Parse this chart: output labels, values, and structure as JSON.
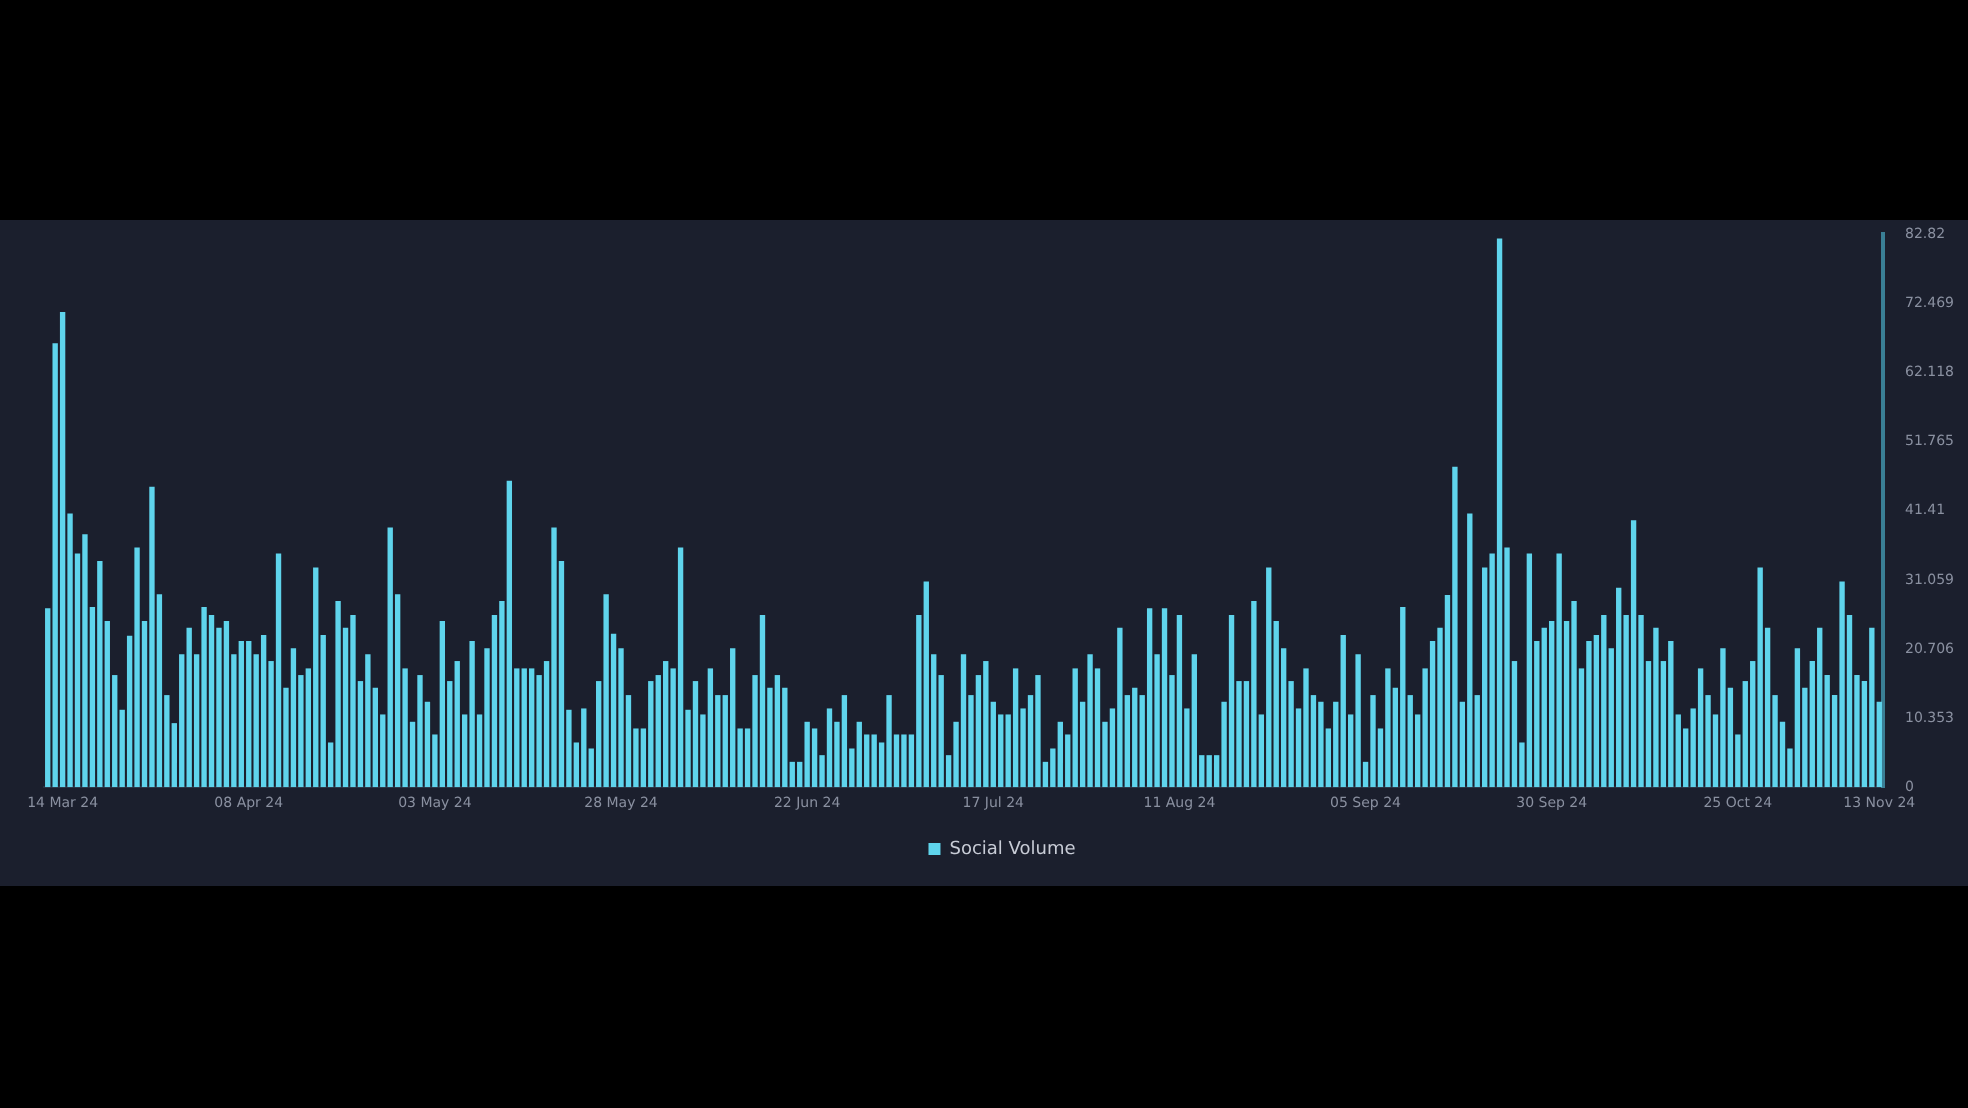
{
  "chart_data": {
    "type": "bar",
    "categories": [
      null,
      null,
      "14 Mar 24",
      null,
      null,
      null,
      null,
      null,
      null,
      null,
      null,
      null,
      null,
      null,
      null,
      null,
      null,
      null,
      null,
      null,
      null,
      null,
      null,
      null,
      null,
      null,
      null,
      "08 Apr 24",
      null,
      null,
      null,
      null,
      null,
      null,
      null,
      null,
      null,
      null,
      null,
      null,
      null,
      null,
      null,
      null,
      null,
      null,
      null,
      null,
      null,
      null,
      null,
      null,
      "03 May 24",
      null,
      null,
      null,
      null,
      null,
      null,
      null,
      null,
      null,
      null,
      null,
      null,
      null,
      null,
      null,
      null,
      null,
      null,
      null,
      null,
      null,
      null,
      null,
      null,
      "28 May 24",
      null,
      null,
      null,
      null,
      null,
      null,
      null,
      null,
      null,
      null,
      null,
      null,
      null,
      null,
      null,
      null,
      null,
      null,
      null,
      null,
      null,
      null,
      null,
      null,
      "22 Jun 24",
      null,
      null,
      null,
      null,
      null,
      null,
      null,
      null,
      null,
      null,
      null,
      null,
      null,
      null,
      null,
      null,
      null,
      null,
      null,
      null,
      null,
      null,
      null,
      null,
      "17 Jul 24",
      null,
      null,
      null,
      null,
      null,
      null,
      null,
      null,
      null,
      null,
      null,
      null,
      null,
      null,
      null,
      null,
      null,
      null,
      null,
      null,
      null,
      null,
      null,
      null,
      "11 Aug 24",
      null,
      null,
      null,
      null,
      null,
      null,
      null,
      null,
      null,
      null,
      null,
      null,
      null,
      null,
      null,
      null,
      null,
      null,
      null,
      null,
      null,
      null,
      null,
      null,
      "05 Sep 24",
      null,
      null,
      null,
      null,
      null,
      null,
      null,
      null,
      null,
      null,
      null,
      null,
      null,
      null,
      null,
      null,
      null,
      null,
      null,
      null,
      null,
      null,
      null,
      null,
      "30 Sep 24",
      null,
      null,
      null,
      null,
      null,
      null,
      null,
      null,
      null,
      null,
      null,
      null,
      null,
      null,
      null,
      null,
      null,
      null,
      null,
      null,
      null,
      null,
      null,
      null,
      "25 Oct 24",
      null,
      null,
      null,
      null,
      null,
      null,
      null,
      null,
      null,
      null,
      null,
      null,
      null,
      null,
      null,
      null,
      null,
      null,
      "13 Nov 24"
    ],
    "series": [
      {
        "name": "Social Volume",
        "color": "#5fd4ec",
        "values": [
          26.8,
          66.5,
          71.2,
          41.0,
          35.0,
          37.9,
          27.0,
          33.9,
          24.9,
          16.8,
          11.6,
          22.7,
          35.9,
          24.9,
          45.0,
          28.9,
          13.8,
          9.6,
          19.9,
          23.9,
          19.9,
          27.0,
          25.8,
          23.9,
          24.9,
          19.9,
          21.9,
          21.9,
          19.9,
          22.8,
          18.9,
          35.0,
          14.9,
          20.8,
          16.8,
          17.8,
          32.9,
          22.8,
          6.7,
          27.9,
          23.9,
          25.8,
          15.9,
          19.9,
          14.9,
          10.9,
          38.9,
          28.9,
          17.8,
          9.8,
          16.8,
          12.8,
          7.9,
          24.9,
          15.9,
          18.9,
          10.9,
          21.9,
          10.9,
          20.8,
          25.8,
          27.9,
          45.9,
          17.8,
          17.8,
          17.8,
          16.8,
          18.9,
          38.9,
          33.9,
          11.6,
          6.7,
          11.8,
          5.8,
          15.9,
          28.9,
          23.0,
          20.8,
          13.8,
          8.8,
          8.8,
          15.9,
          16.8,
          18.9,
          17.8,
          35.9,
          11.6,
          15.9,
          10.9,
          17.8,
          13.8,
          13.8,
          20.8,
          8.8,
          8.8,
          16.8,
          25.8,
          14.9,
          16.8,
          14.9,
          3.8,
          3.8,
          9.8,
          8.8,
          4.8,
          11.8,
          9.8,
          13.8,
          5.8,
          9.8,
          7.9,
          7.9,
          6.7,
          13.8,
          7.9,
          7.9,
          7.9,
          25.8,
          30.8,
          19.9,
          16.8,
          4.8,
          9.8,
          19.9,
          13.8,
          16.8,
          18.9,
          12.8,
          10.9,
          10.9,
          17.8,
          11.8,
          13.8,
          16.8,
          3.8,
          5.8,
          9.8,
          7.9,
          17.8,
          12.8,
          19.9,
          17.8,
          9.8,
          11.8,
          23.9,
          13.8,
          14.9,
          13.8,
          26.8,
          19.9,
          26.8,
          16.8,
          25.8,
          11.8,
          19.9,
          4.8,
          4.8,
          4.8,
          12.8,
          25.8,
          15.9,
          15.9,
          27.9,
          10.9,
          32.9,
          24.9,
          20.8,
          15.9,
          11.8,
          17.8,
          13.8,
          12.8,
          8.8,
          12.8,
          22.8,
          10.9,
          19.9,
          3.8,
          13.8,
          8.8,
          17.8,
          14.9,
          27.0,
          13.8,
          10.9,
          17.8,
          21.9,
          23.9,
          28.8,
          48.0,
          12.8,
          41.0,
          13.8,
          32.9,
          35.0,
          82.2,
          35.9,
          18.9,
          6.7,
          35.0,
          21.9,
          23.9,
          24.9,
          35.0,
          24.9,
          27.9,
          17.8,
          21.9,
          22.8,
          25.8,
          20.8,
          29.9,
          25.8,
          40.0,
          25.8,
          18.9,
          23.9,
          18.9,
          21.9,
          10.9,
          8.8,
          11.8,
          17.8,
          13.8,
          10.9,
          20.8,
          14.9,
          7.9,
          15.9,
          18.9,
          32.9,
          23.9,
          13.8,
          9.8,
          5.8,
          20.8,
          14.9,
          18.9,
          23.9,
          16.8,
          13.8,
          30.8,
          25.8,
          16.8,
          15.9,
          23.9,
          12.8
        ]
      }
    ],
    "ylim": [
      0,
      82.82
    ],
    "yticks": [
      0,
      10.353,
      20.706,
      31.059,
      41.41,
      51.765,
      62.118,
      72.469,
      82.82
    ],
    "legend": "bottom"
  }
}
